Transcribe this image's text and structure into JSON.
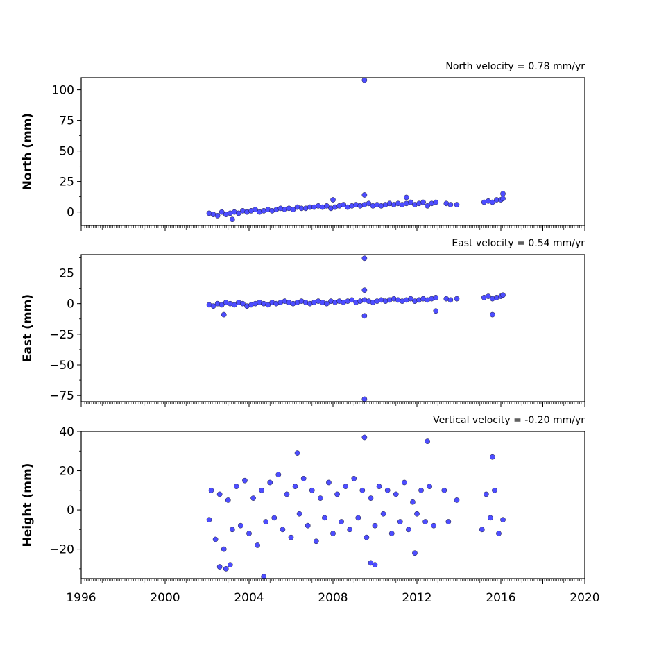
{
  "chart_data": [
    {
      "type": "scatter",
      "title": "North velocity = 0.78 mm/yr",
      "ylabel": "North (mm)",
      "xlabel": "",
      "xlim": [
        1996,
        2020
      ],
      "ylim": [
        -11,
        110
      ],
      "yticks": [
        0,
        25,
        50,
        75,
        100
      ],
      "ytick_labels": [
        "0",
        "25",
        "50",
        "75",
        "100"
      ],
      "color": "#4d4dff",
      "series": [
        {
          "x": [
            2002.1,
            2002.3,
            2002.5,
            2002.7,
            2002.9,
            2003.1,
            2003.3,
            2003.5,
            2003.7,
            2003.9,
            2004.1,
            2004.3,
            2004.5,
            2004.7,
            2004.9,
            2005.1,
            2005.3,
            2005.5,
            2005.7,
            2005.9,
            2006.1,
            2006.3,
            2006.5,
            2006.7,
            2006.9,
            2007.1,
            2007.3,
            2007.5,
            2007.7,
            2007.9,
            2008.1,
            2008.3,
            2008.5,
            2008.7,
            2008.9,
            2009.1,
            2009.3,
            2009.5,
            2009.7,
            2009.9,
            2010.1,
            2010.3,
            2010.5,
            2010.7,
            2010.9,
            2011.1,
            2011.3,
            2011.5,
            2011.7,
            2011.9,
            2012.1,
            2012.3,
            2012.5,
            2012.7,
            2012.9,
            2013.4,
            2013.6,
            2013.9,
            2015.2,
            2015.4,
            2015.6,
            2015.8,
            2016.0,
            2016.1,
            2009.5,
            2009.5,
            2008.0,
            2011.5,
            2003.2,
            2016.1
          ],
          "y": [
            -1,
            -2,
            -3,
            0,
            -2,
            -1,
            0,
            -1,
            1,
            0,
            1,
            2,
            0,
            1,
            2,
            1,
            2,
            3,
            2,
            3,
            2,
            4,
            3,
            3,
            4,
            4,
            5,
            4,
            5,
            3,
            4,
            5,
            6,
            4,
            5,
            6,
            5,
            6,
            7,
            5,
            6,
            5,
            6,
            7,
            6,
            7,
            6,
            7,
            8,
            6,
            7,
            8,
            5,
            7,
            8,
            7,
            6,
            6,
            8,
            9,
            8,
            10,
            10,
            11,
            108,
            14,
            10,
            12,
            -6,
            15
          ]
        }
      ]
    },
    {
      "type": "scatter",
      "title": "East velocity = 0.54 mm/yr",
      "ylabel": "East (mm)",
      "xlabel": "",
      "xlim": [
        1996,
        2020
      ],
      "ylim": [
        -80,
        40
      ],
      "yticks": [
        -75,
        -50,
        -25,
        0,
        25
      ],
      "ytick_labels": [
        "−75",
        "−50",
        "−25",
        "0",
        "25"
      ],
      "color": "#4d4dff",
      "series": [
        {
          "x": [
            2002.1,
            2002.3,
            2002.5,
            2002.7,
            2002.9,
            2003.1,
            2003.3,
            2003.5,
            2003.7,
            2003.9,
            2004.1,
            2004.3,
            2004.5,
            2004.7,
            2004.9,
            2005.1,
            2005.3,
            2005.5,
            2005.7,
            2005.9,
            2006.1,
            2006.3,
            2006.5,
            2006.7,
            2006.9,
            2007.1,
            2007.3,
            2007.5,
            2007.7,
            2007.9,
            2008.1,
            2008.3,
            2008.5,
            2008.7,
            2008.9,
            2009.1,
            2009.3,
            2009.5,
            2009.7,
            2009.9,
            2010.1,
            2010.3,
            2010.5,
            2010.7,
            2010.9,
            2011.1,
            2011.3,
            2011.5,
            2011.7,
            2011.9,
            2012.1,
            2012.3,
            2012.5,
            2012.7,
            2012.9,
            2013.4,
            2013.6,
            2013.9,
            2015.2,
            2015.4,
            2015.6,
            2015.8,
            2016.0,
            2016.1,
            2009.5,
            2009.5,
            2009.5,
            2009.5,
            2002.8,
            2015.6,
            2012.9
          ],
          "y": [
            -1,
            -2,
            0,
            -1,
            1,
            0,
            -1,
            1,
            0,
            -2,
            -1,
            0,
            1,
            0,
            -1,
            1,
            0,
            1,
            2,
            1,
            0,
            1,
            2,
            1,
            0,
            1,
            2,
            1,
            0,
            2,
            1,
            2,
            1,
            2,
            3,
            1,
            2,
            3,
            2,
            1,
            2,
            3,
            2,
            3,
            4,
            3,
            2,
            3,
            4,
            2,
            3,
            4,
            3,
            4,
            5,
            4,
            3,
            4,
            5,
            6,
            4,
            5,
            6,
            7,
            37,
            -78,
            11,
            -10,
            -9,
            -9,
            -6
          ]
        }
      ]
    },
    {
      "type": "scatter",
      "title": "Vertical velocity = -0.20 mm/yr",
      "ylabel": "Height (mm)",
      "xlabel": "",
      "xlim": [
        1996,
        2020
      ],
      "ylim": [
        -35,
        40
      ],
      "yticks": [
        -20,
        0,
        20,
        40
      ],
      "ytick_labels": [
        "−20",
        "0",
        "20",
        "40"
      ],
      "xticks": [
        1996,
        2000,
        2004,
        2008,
        2012,
        2016,
        2020
      ],
      "xtick_labels": [
        "1996",
        "2000",
        "2004",
        "2008",
        "2012",
        "2016",
        "2020"
      ],
      "color": "#4d4dff",
      "series": [
        {
          "x": [
            2002.1,
            2002.2,
            2002.4,
            2002.6,
            2002.8,
            2003.0,
            2003.2,
            2003.4,
            2003.6,
            2003.8,
            2004.0,
            2004.2,
            2004.4,
            2004.6,
            2004.8,
            2005.0,
            2005.2,
            2005.4,
            2005.6,
            2005.8,
            2006.0,
            2006.2,
            2006.4,
            2006.6,
            2006.8,
            2007.0,
            2007.2,
            2007.4,
            2007.6,
            2007.8,
            2008.0,
            2008.2,
            2008.4,
            2008.6,
            2008.8,
            2009.0,
            2009.2,
            2009.4,
            2009.6,
            2009.8,
            2010.0,
            2010.2,
            2010.4,
            2010.6,
            2010.8,
            2011.0,
            2011.2,
            2011.4,
            2011.6,
            2011.8,
            2012.0,
            2012.2,
            2012.4,
            2012.6,
            2012.8,
            2013.3,
            2013.5,
            2013.9,
            2015.1,
            2015.3,
            2015.5,
            2015.7,
            2015.9,
            2016.1,
            2009.5,
            2012.5,
            2002.6,
            2002.9,
            2004.7,
            2003.1,
            2006.3,
            2009.8,
            2015.6,
            2010.0,
            2011.9
          ],
          "y": [
            -5,
            10,
            -15,
            8,
            -20,
            5,
            -10,
            12,
            -8,
            15,
            -12,
            6,
            -18,
            10,
            -6,
            14,
            -4,
            18,
            -10,
            8,
            -14,
            12,
            -2,
            16,
            -8,
            10,
            -16,
            6,
            -4,
            14,
            -12,
            8,
            -6,
            12,
            -10,
            16,
            -4,
            10,
            -14,
            6,
            -8,
            12,
            -2,
            10,
            -12,
            8,
            -6,
            14,
            -10,
            4,
            -2,
            10,
            -6,
            12,
            -8,
            10,
            -6,
            5,
            -10,
            8,
            -4,
            10,
            -12,
            -5,
            37,
            35,
            -29,
            -30,
            -34,
            -28,
            29,
            -27,
            27,
            -28,
            -22
          ]
        }
      ]
    }
  ]
}
